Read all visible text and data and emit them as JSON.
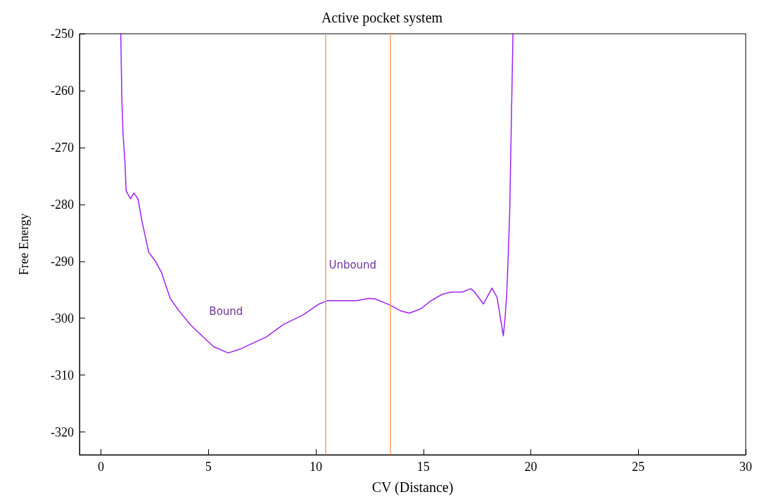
{
  "chart_data": {
    "type": "line",
    "title": "Active pocket system",
    "xlabel": "CV (Distance)",
    "ylabel": "Free Energy",
    "xlim": [
      -1,
      30
    ],
    "xticks": [
      0,
      5,
      10,
      15,
      20,
      25,
      30
    ],
    "ylim": [
      -324,
      -250
    ],
    "yticks": [
      -320,
      -310,
      -300,
      -290,
      -280,
      -270,
      -260,
      -250
    ],
    "grid": false,
    "marker": "none",
    "line_style": "solid",
    "series": [
      {
        "color": "#a020f0",
        "x": [
          0.92,
          0.97,
          1.03,
          1.11,
          1.17,
          1.37,
          1.53,
          1.72,
          1.91,
          2.22,
          2.52,
          2.82,
          3.23,
          3.69,
          4.2,
          5.24,
          5.92,
          6.49,
          7.69,
          8.49,
          9.41,
          10.15,
          10.55,
          11.91,
          12.45,
          12.76,
          13.46,
          13.94,
          14.35,
          14.9,
          15.33,
          15.87,
          16.3,
          16.83,
          17.2,
          17.36,
          17.8,
          18.19,
          18.43,
          18.72,
          18.8,
          18.88,
          18.94,
          19.02,
          19.17
        ],
        "values": [
          -250,
          -261.4,
          -267.8,
          -272.2,
          -277.6,
          -279,
          -278,
          -279,
          -283,
          -288.4,
          -289.9,
          -292,
          -296.6,
          -299,
          -301.3,
          -305,
          -306.1,
          -305.4,
          -303.3,
          -301.1,
          -299.4,
          -297.5,
          -296.9,
          -296.9,
          -296.5,
          -296.6,
          -297.7,
          -298.7,
          -299.1,
          -298.3,
          -297,
          -295.8,
          -295.4,
          -295.4,
          -294.8,
          -295.3,
          -297.5,
          -294.7,
          -296.3,
          -303.1,
          -300.1,
          -295.7,
          -290.1,
          -281,
          -250
        ]
      }
    ],
    "ref_lines": [
      {
        "axis": "x",
        "value": 10.45,
        "color": "#f4a060"
      },
      {
        "axis": "x",
        "value": 13.46,
        "color": "#f4a060"
      }
    ],
    "annotations": [
      "Bound",
      "Unbound"
    ]
  }
}
